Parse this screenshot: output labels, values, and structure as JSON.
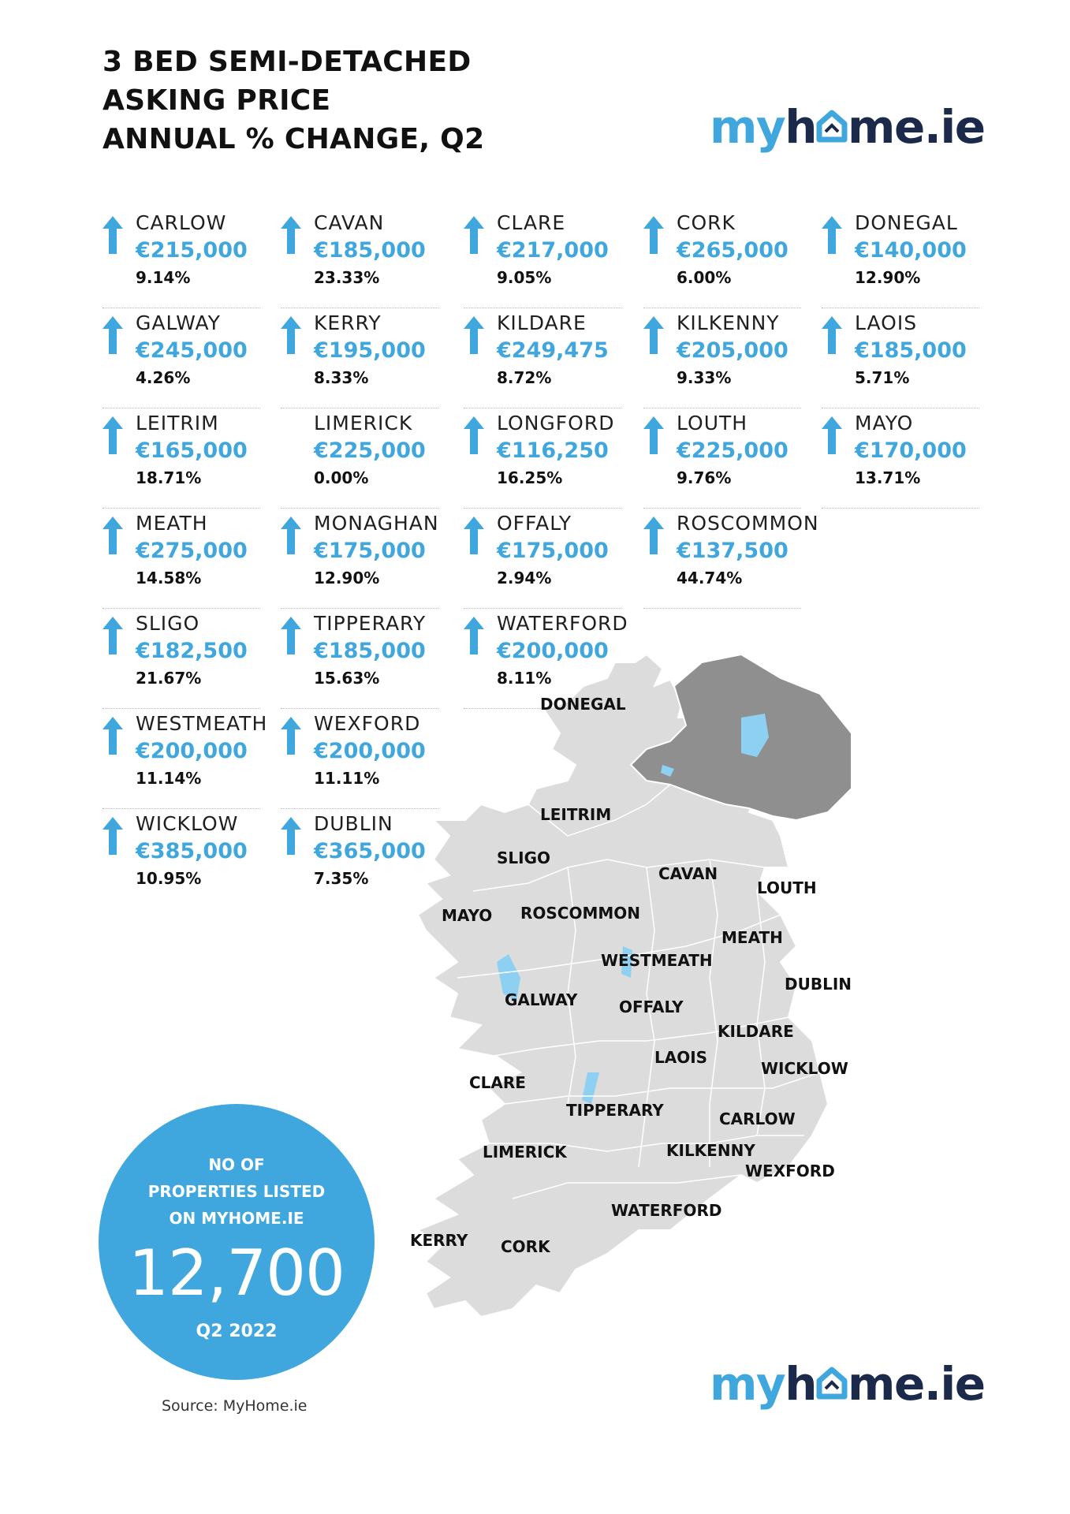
{
  "title": {
    "line1": "3 BED SEMI-DETACHED",
    "line2": "ASKING PRICE",
    "line3": "ANNUAL % CHANGE, Q2"
  },
  "logo": {
    "part1": "my",
    "part2": "h",
    "part3": "me.ie",
    "icon": "house-heart-o-icon"
  },
  "colors": {
    "accent": "#3fa7dd",
    "brand_dark": "#1b2a4a",
    "county_fill": "#dcdcdc",
    "ni_fill": "#8f8f8f",
    "water": "#8ed0f2"
  },
  "counties": [
    {
      "name": "CARLOW",
      "price": "€215,000",
      "change": "9.14%",
      "trend": "up-arrow-icon"
    },
    {
      "name": "CAVAN",
      "price": "€185,000",
      "change": "23.33%",
      "trend": "up-arrow-icon"
    },
    {
      "name": "CLARE",
      "price": "€217,000",
      "change": "9.05%",
      "trend": "up-arrow-icon"
    },
    {
      "name": "CORK",
      "price": "€265,000",
      "change": "6.00%",
      "trend": "up-arrow-icon"
    },
    {
      "name": "DONEGAL",
      "price": "€140,000",
      "change": "12.90%",
      "trend": "up-arrow-icon"
    },
    {
      "name": "GALWAY",
      "price": "€245,000",
      "change": "4.26%",
      "trend": "up-arrow-icon"
    },
    {
      "name": "KERRY",
      "price": "€195,000",
      "change": "8.33%",
      "trend": "up-arrow-icon"
    },
    {
      "name": "KILDARE",
      "price": "€249,475",
      "change": "8.72%",
      "trend": "up-arrow-icon"
    },
    {
      "name": "KILKENNY",
      "price": "€205,000",
      "change": "9.33%",
      "trend": "up-arrow-icon"
    },
    {
      "name": "LAOIS",
      "price": "€185,000",
      "change": "5.71%",
      "trend": "up-arrow-icon"
    },
    {
      "name": "LEITRIM",
      "price": "€165,000",
      "change": "18.71%",
      "trend": "up-arrow-icon"
    },
    {
      "name": "LIMERICK",
      "price": "€225,000",
      "change": "0.00%",
      "trend": ""
    },
    {
      "name": "LONGFORD",
      "price": "€116,250",
      "change": "16.25%",
      "trend": "up-arrow-icon"
    },
    {
      "name": "LOUTH",
      "price": "€225,000",
      "change": "9.76%",
      "trend": "up-arrow-icon"
    },
    {
      "name": "MAYO",
      "price": "€170,000",
      "change": "13.71%",
      "trend": "up-arrow-icon"
    },
    {
      "name": "MEATH",
      "price": "€275,000",
      "change": "14.58%",
      "trend": "up-arrow-icon"
    },
    {
      "name": "MONAGHAN",
      "price": "€175,000",
      "change": "12.90%",
      "trend": "up-arrow-icon"
    },
    {
      "name": "OFFALY",
      "price": "€175,000",
      "change": "2.94%",
      "trend": "up-arrow-icon"
    },
    {
      "name": "ROSCOMMON",
      "price": "€137,500",
      "change": "44.74%",
      "trend": "up-arrow-icon"
    },
    {
      "name": "SLIGO",
      "price": "€182,500",
      "change": "21.67%",
      "trend": "up-arrow-icon"
    },
    {
      "name": "TIPPERARY",
      "price": "€185,000",
      "change": "15.63%",
      "trend": "up-arrow-icon"
    },
    {
      "name": "WATERFORD",
      "price": "€200,000",
      "change": "8.11%",
      "trend": "up-arrow-icon"
    },
    {
      "name": "WESTMEATH",
      "price": "€200,000",
      "change": "11.14%",
      "trend": "up-arrow-icon"
    },
    {
      "name": "WEXFORD",
      "price": "€200,000",
      "change": "11.11%",
      "trend": "up-arrow-icon"
    },
    {
      "name": "WICKLOW",
      "price": "€385,000",
      "change": "10.95%",
      "trend": "up-arrow-icon"
    },
    {
      "name": "DUBLIN",
      "price": "€365,000",
      "change": "7.35%",
      "trend": "up-arrow-icon"
    }
  ],
  "listings": {
    "label_line1": "NO OF",
    "label_line2": "PROPERTIES LISTED",
    "label_line3": "ON MYHOME.IE",
    "count": "12,700",
    "period": "Q2 2022"
  },
  "source": "Source: MyHome.ie",
  "map_labels": {
    "donegal": "DONEGAL",
    "leitrim": "LEITRIM",
    "sligo": "SLIGO",
    "cavan": "CAVAN",
    "louth": "LOUTH",
    "mayo": "MAYO",
    "roscommon": "ROSCOMMON",
    "meath": "MEATH",
    "westmeath": "WESTMEATH",
    "dublin": "DUBLIN",
    "galway": "GALWAY",
    "offaly": "OFFALY",
    "kildare": "KILDARE",
    "laois": "LAOIS",
    "wicklow": "WICKLOW",
    "clare": "CLARE",
    "tipperary": "TIPPERARY",
    "carlow": "CARLOW",
    "limerick": "LIMERICK",
    "kilkenny": "KILKENNY",
    "wexford": "WEXFORD",
    "waterford": "WATERFORD",
    "kerry": "KERRY",
    "cork": "CORK"
  }
}
